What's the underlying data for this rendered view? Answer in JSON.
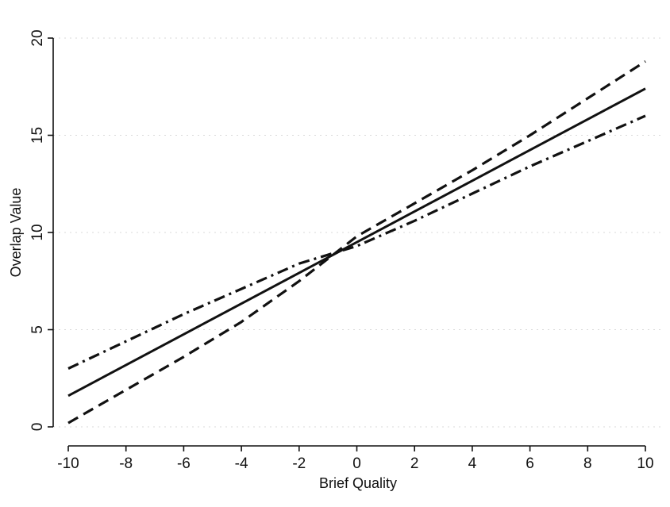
{
  "chart_data": {
    "type": "line",
    "xlabel": "Brief Quality",
    "ylabel": "Overlap Value",
    "xlim": [
      -10,
      10
    ],
    "ylim": [
      0,
      20
    ],
    "xticks": [
      -10,
      -8,
      -6,
      -4,
      -2,
      0,
      2,
      4,
      6,
      8,
      10
    ],
    "yticks": [
      0,
      5,
      10,
      15,
      20
    ],
    "grid": true,
    "series": [
      {
        "style": "solid",
        "color": "#111111",
        "x": [
          -10,
          10
        ],
        "y": [
          1.6,
          17.4
        ]
      },
      {
        "style": "dashed",
        "color": "#111111",
        "x": [
          -10,
          -8,
          -6,
          -4,
          -2,
          0,
          2,
          4,
          6,
          8,
          10
        ],
        "y": [
          0.2,
          1.9,
          3.6,
          5.4,
          7.5,
          9.8,
          11.5,
          13.2,
          15.0,
          16.9,
          18.8
        ]
      },
      {
        "style": "dashdot",
        "color": "#111111",
        "x": [
          -10,
          -8,
          -6,
          -4,
          -2,
          0,
          2,
          4,
          6,
          8,
          10
        ],
        "y": [
          3.0,
          4.4,
          5.8,
          7.1,
          8.4,
          9.3,
          10.6,
          12.0,
          13.4,
          14.7,
          16.0
        ]
      }
    ]
  }
}
